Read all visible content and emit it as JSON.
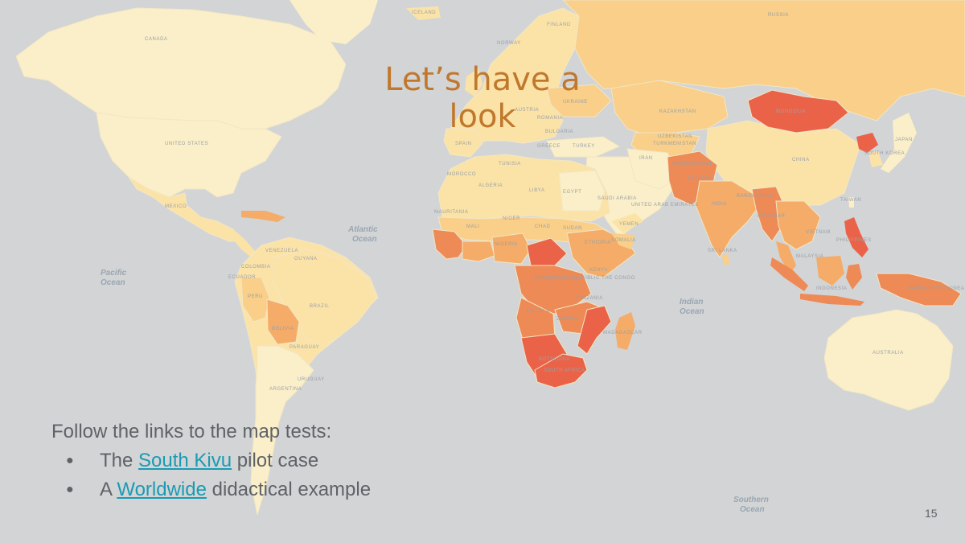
{
  "slide": {
    "title": "Let’s have a look",
    "intro": "Follow the links to the map tests:",
    "bullets": [
      {
        "prefix": "The ",
        "link": "South Kivu",
        "suffix": " pilot case"
      },
      {
        "prefix": "A ",
        "link": "Worldwide",
        "suffix": " didactical example"
      }
    ],
    "page_number": "15"
  },
  "map": {
    "ocean_labels": [
      {
        "line1": "Pacific",
        "line2": "Ocean"
      },
      {
        "line1": "Atlantic",
        "line2": "Ocean"
      },
      {
        "line1": "Indian",
        "line2": "Ocean"
      },
      {
        "line1": "Southern",
        "line2": "Ocean"
      }
    ],
    "country_labels": [
      "CANADA",
      "UNITED STATES",
      "MEXICO",
      "RUSSIA",
      "KAZAKHSTAN",
      "MONGOLIA",
      "CHINA",
      "INDIA",
      "IRAN",
      "TURKEY",
      "ALGERIA",
      "LIBYA",
      "EGYPT",
      "NIGER",
      "CHAD",
      "SUDAN",
      "NIGERIA",
      "ETHIOPIA",
      "KENYA",
      "ANGOLA",
      "ZAMBIA",
      "SOUTH AFRICA",
      "MADAGASCAR",
      "BRAZIL",
      "PERU",
      "BOLIVIA",
      "COLOMBIA",
      "VENEZUELA",
      "ARGENTINA",
      "AUSTRALIA",
      "SAUDI ARABIA",
      "DEMOCRATIC REPUBLIC THE CONGO",
      "PAPUA NEW GUINEA",
      "UKRAINE",
      "FINLAND",
      "NORWAY",
      "ICELAND",
      "SRI LANKA",
      "TAIWAN",
      "SOUTH KOREA",
      "MALI",
      "MAURITANIA",
      "BOTSWANA",
      "PARAGUAY",
      "URUGUAY",
      "ECUADOR",
      "GUYANA",
      "SOMALIA",
      "TANZANIA",
      "MOROCCO",
      "TUNISIA",
      "SPAIN",
      "GREECE",
      "BULGARIA",
      "ROMANIA",
      "AUSTRIA",
      "TURKMENISTAN",
      "UZBEKISTAN",
      "AFGHANISTAN",
      "PAKISTAN",
      "BANGLADESH",
      "MYANMAR",
      "VIETNAM",
      "UNITED ARAB EMIRATES",
      "YEMEN",
      "JAPAN",
      "MALAYSIA",
      "INDONESIA",
      "PHILIPPINES"
    ],
    "colors": {
      "ocean": "#d2d4d6",
      "very_low": "#fbefc9",
      "low": "#fbe3a8",
      "medium_low": "#f9cf89",
      "medium": "#f4ac68",
      "high": "#ee8a56",
      "very_high": "#ea6349"
    }
  }
}
